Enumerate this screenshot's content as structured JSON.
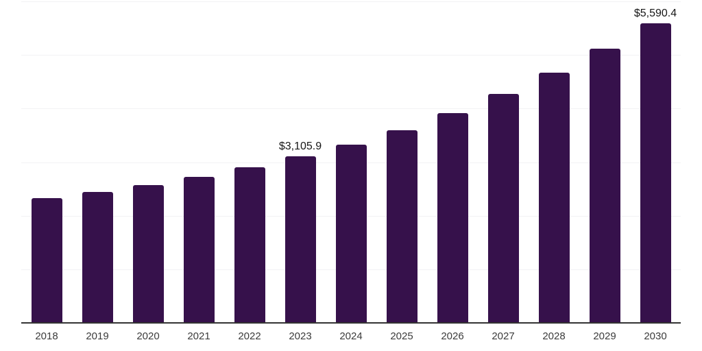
{
  "chart_data": {
    "type": "bar",
    "title": "",
    "xlabel": "",
    "ylabel": "",
    "categories": [
      "2018",
      "2019",
      "2020",
      "2021",
      "2022",
      "2023",
      "2024",
      "2025",
      "2026",
      "2027",
      "2028",
      "2029",
      "2030"
    ],
    "values": [
      2331.7,
      2447.2,
      2575.3,
      2723.0,
      2903.2,
      3105.9,
      3331.4,
      3600.8,
      3911.0,
      4270.5,
      4663.7,
      5115.2,
      5590.4
    ],
    "value_labels": [
      "",
      "",
      "",
      "",
      "",
      "$3,105.9",
      "",
      "",
      "",
      "",
      "",
      "",
      "$5,590.4"
    ],
    "ylim": [
      0,
      6000
    ],
    "y_gridlines": [
      1000,
      2000,
      3000,
      4000,
      5000,
      6000
    ],
    "grid": true,
    "legend": "none",
    "y_tick_labels_shown": false,
    "colors": {
      "bar": "#36114B",
      "gridline": "#f2f2f4",
      "axis_line": "#333333",
      "tick_label": "#3b3b3b",
      "value_label": "#161616",
      "background": "#ffffff"
    }
  }
}
